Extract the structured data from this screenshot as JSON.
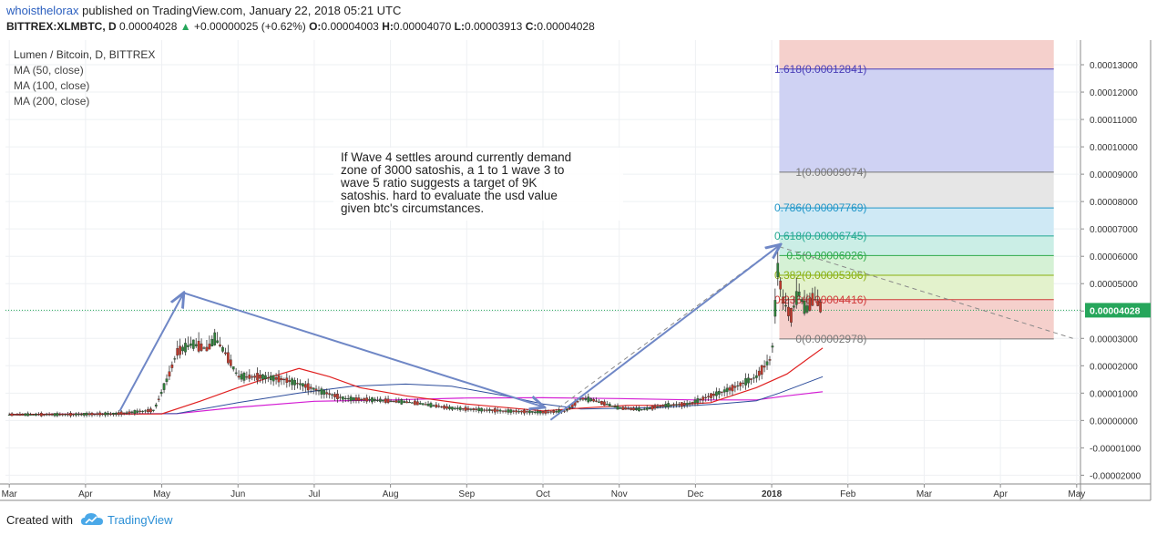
{
  "header": {
    "author": "whoisthelorax",
    "published": "published on TradingView.com, January 22, 2018 05:21 UTC",
    "symbol": "BITTREX:XLMBTC, D",
    "last": "0.00004028",
    "change": "+0.00000025 (+0.62%)",
    "open_label": "O:",
    "open": "0.00004003",
    "high_label": "H:",
    "high": "0.00004070",
    "low_label": "L:",
    "low": "0.00003913",
    "close_label": "C:",
    "close": "0.00004028"
  },
  "footer": {
    "created_with": "Created with",
    "brand": "TradingView"
  },
  "colors": {
    "fib_line_1618": "#4a3fb8",
    "fib_0786": "#2096c8",
    "fib_0618": "#22a890",
    "fib_05": "#2eaa4a",
    "fib_0382": "#8ab010",
    "fib_0236": "#d03a3a",
    "price": "#26a65b"
  },
  "chart_data": {
    "type": "candlestick",
    "title": "Lumen / Bitcoin, D, BITTREX",
    "legend": [
      "MA (50, close)",
      "MA (100, close)",
      "MA (200, close)"
    ],
    "xlabel": "",
    "ylabel": "",
    "x_ticks": [
      "Mar",
      "Apr",
      "May",
      "Jun",
      "Jul",
      "Aug",
      "Sep",
      "Oct",
      "Nov",
      "Dec",
      "2018",
      "Feb",
      "Mar",
      "Apr",
      "May"
    ],
    "y_ticks": [
      "0.00013000",
      "0.00012000",
      "0.00011000",
      "0.00010000",
      "0.00009000",
      "0.00008000",
      "0.00007000",
      "0.00006000",
      "0.00005000",
      "0.00004000",
      "0.00003000",
      "0.00002000",
      "0.00001000",
      "0.00000000",
      "-0.00001000",
      "-0.00002000"
    ],
    "y_tick_values": [
      0.00013,
      0.00012,
      0.00011,
      0.0001,
      9e-05,
      8e-05,
      7e-05,
      6e-05,
      5e-05,
      4e-05,
      3e-05,
      2e-05,
      1e-05,
      0,
      -1e-05,
      -2e-05
    ],
    "ylim": [
      -2.32e-05,
      0.000139
    ],
    "x_range_months": [
      -0.05,
      14.05
    ],
    "current_price": 4.028e-05,
    "current_price_label": "0.00004028",
    "price_path": [
      [
        0,
        2.1e-06
      ],
      [
        0.8,
        2.2e-06
      ],
      [
        1.4,
        2.5e-06
      ],
      [
        1.9,
        3.8e-06
      ],
      [
        2.1,
        1.7e-05
      ],
      [
        2.2,
        2.5e-05
      ],
      [
        2.4,
        2.8e-05
      ],
      [
        2.6,
        2.6e-05
      ],
      [
        2.7,
        3e-05
      ],
      [
        2.85,
        2.4e-05
      ],
      [
        3.0,
        1.6e-05
      ],
      [
        3.3,
        1.6e-05
      ],
      [
        3.6,
        1.5e-05
      ],
      [
        3.85,
        1.3e-05
      ],
      [
        4.1,
        1.05e-05
      ],
      [
        4.4,
        8e-06
      ],
      [
        4.8,
        7.5e-06
      ],
      [
        5.3,
        6.5e-06
      ],
      [
        5.8,
        4.5e-06
      ],
      [
        6.5,
        3.5e-06
      ],
      [
        7.0,
        3e-06
      ],
      [
        7.3,
        3.5e-06
      ],
      [
        7.5,
        8e-06
      ],
      [
        7.65,
        7.5e-06
      ],
      [
        8.0,
        4.5e-06
      ],
      [
        8.3,
        4e-06
      ],
      [
        8.6,
        5.5e-06
      ],
      [
        8.9,
        6e-06
      ],
      [
        9.2,
        9e-06
      ],
      [
        9.5,
        1.2e-05
      ],
      [
        9.8,
        1.6e-05
      ],
      [
        10.0,
        2.3e-05
      ],
      [
        10.08,
        5.5e-05
      ],
      [
        10.15,
        4.4e-05
      ],
      [
        10.25,
        3.8e-05
      ],
      [
        10.35,
        4.7e-05
      ],
      [
        10.45,
        4e-05
      ],
      [
        10.55,
        4.5e-05
      ],
      [
        10.67,
        4.028e-05
      ]
    ],
    "ma_50": [
      [
        0,
        2.2e-06
      ],
      [
        2.0,
        2.4e-06
      ],
      [
        2.5,
        7e-06
      ],
      [
        3.0,
        1.2e-05
      ],
      [
        3.5,
        1.65e-05
      ],
      [
        3.8,
        1.9e-05
      ],
      [
        4.2,
        1.6e-05
      ],
      [
        4.6,
        1.2e-05
      ],
      [
        5.2,
        9e-06
      ],
      [
        6.0,
        6e-06
      ],
      [
        7.0,
        3.5e-06
      ],
      [
        7.5,
        4.5e-06
      ],
      [
        8.1,
        5.5e-06
      ],
      [
        8.6,
        5.5e-06
      ],
      [
        9.2,
        6.5e-06
      ],
      [
        9.8,
        1.2e-05
      ],
      [
        10.2,
        1.7e-05
      ],
      [
        10.67,
        2.65e-05
      ]
    ],
    "ma_100": [
      [
        0,
        2.2e-06
      ],
      [
        2.2,
        2.5e-06
      ],
      [
        3.0,
        6.5e-06
      ],
      [
        3.8,
        1e-05
      ],
      [
        4.5,
        1.25e-05
      ],
      [
        5.2,
        1.33e-05
      ],
      [
        5.8,
        1.25e-05
      ],
      [
        6.5,
        9e-06
      ],
      [
        7.0,
        6e-06
      ],
      [
        7.5,
        4.2e-06
      ],
      [
        8.5,
        4.7e-06
      ],
      [
        9.3,
        6e-06
      ],
      [
        9.8,
        7.2e-06
      ],
      [
        10.1,
        1e-05
      ],
      [
        10.67,
        1.6e-05
      ]
    ],
    "ma_200": [
      [
        0,
        2.2e-06
      ],
      [
        2.2,
        2.5e-06
      ],
      [
        3.0,
        4.8e-06
      ],
      [
        4.0,
        7e-06
      ],
      [
        5.0,
        7.5e-06
      ],
      [
        6.0,
        8.2e-06
      ],
      [
        7.0,
        8.3e-06
      ],
      [
        8.0,
        8e-06
      ],
      [
        9.0,
        7.5e-06
      ],
      [
        9.8,
        7.5e-06
      ],
      [
        10.2,
        9e-06
      ],
      [
        10.67,
        1.05e-05
      ]
    ],
    "annotation": "If Wave 4 settles around currently demand zone of 3000 satoshis, a 1 to 1 wave 3 to wave 5 ratio suggests a target of 9K satoshis. hard to evaluate the usd value given btc's circumstances.",
    "arrows": [
      {
        "from": [
          1.45,
          3.5e-06
        ],
        "to": [
          2.28,
          4.62e-05
        ]
      },
      {
        "from": [
          2.3,
          4.65e-05
        ],
        "to": [
          7.0,
          5e-06
        ]
      },
      {
        "from": [
          7.1,
          2e-07
        ],
        "to": [
          10.1,
          6.4e-05
        ]
      }
    ],
    "dashed_lines": [
      {
        "from": [
          7.2,
          4.5e-06
        ],
        "to": [
          10.1,
          6.4e-05
        ]
      },
      {
        "from": [
          10.1,
          6.35e-05
        ],
        "to": [
          13.95,
          3e-05
        ]
      }
    ],
    "fib_x_range_months": [
      10.1,
      13.7
    ],
    "fib_levels": [
      {
        "ratio": "1.618",
        "label": "1.618(0.00012841)",
        "value": 0.00012841
      },
      {
        "ratio": "1",
        "label": "1(0.00009074)",
        "value": 9.074e-05
      },
      {
        "ratio": "0.786",
        "label": "0.786(0.00007769)",
        "value": 7.769e-05
      },
      {
        "ratio": "0.618",
        "label": "0.618(0.00006745)",
        "value": 6.745e-05
      },
      {
        "ratio": "0.5",
        "label": "0.5(0.00006026)",
        "value": 6.026e-05
      },
      {
        "ratio": "0.382",
        "label": "0.382(0.00005306)",
        "value": 5.306e-05
      },
      {
        "ratio": "0.236",
        "label": "0.236(0.00004416)",
        "value": 4.416e-05
      },
      {
        "ratio": "0",
        "label": "0(0.00002978)",
        "value": 2.978e-05
      }
    ]
  }
}
